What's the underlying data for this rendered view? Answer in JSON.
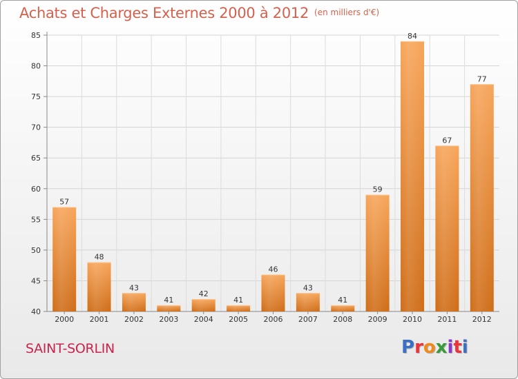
{
  "title": "Achats et Charges Externes 2000 à 2012",
  "subtitle": "(en milliers d'€)",
  "commune": "SAINT-SORLIN",
  "logo": {
    "text": "Proxiti",
    "colors": [
      "#3a6fc4",
      "#e8343a",
      "#f08a1c",
      "#3a9a3a",
      "#8a3ac4",
      "#e8343a",
      "#3a6fc4"
    ]
  },
  "chart_data": {
    "type": "bar",
    "title": "Achats et Charges Externes 2000 à 2012",
    "subtitle": "(en milliers d'€)",
    "categories": [
      "2000",
      "2001",
      "2002",
      "2003",
      "2004",
      "2005",
      "2006",
      "2007",
      "2008",
      "2009",
      "2010",
      "2011",
      "2012"
    ],
    "values": [
      57,
      48,
      43,
      41,
      42,
      41,
      46,
      43,
      41,
      59,
      84,
      67,
      77
    ],
    "data_labels": [
      "57",
      "48",
      "43",
      "41",
      "42",
      "41",
      "46",
      "43",
      "41",
      "59",
      "84",
      "67",
      "77"
    ],
    "ylim": [
      40,
      85
    ],
    "yticks": [
      40,
      45,
      50,
      55,
      60,
      65,
      70,
      75,
      80,
      85
    ],
    "ytick_labels": [
      "40",
      "45",
      "50",
      "55",
      "60",
      "65",
      "70",
      "75",
      "80",
      "85"
    ],
    "grid": true,
    "bar_color": "#f0963c",
    "xlabel": "",
    "ylabel": ""
  }
}
